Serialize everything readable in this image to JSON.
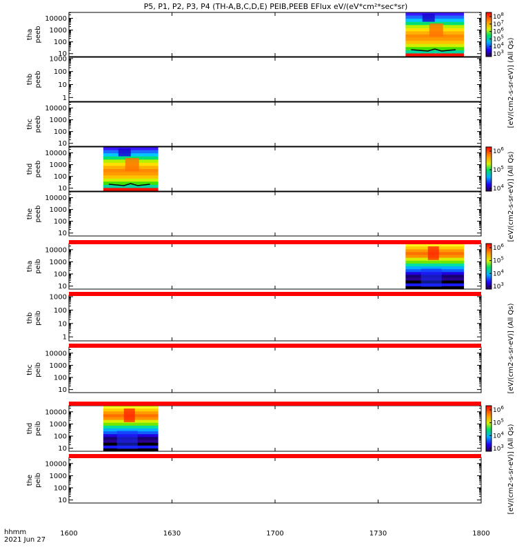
{
  "title": "P5, P1, P2, P3, P4 (TH-A,B,C,D,E) PEIB,PEEB EFlux eV/(eV*cm²*sec*sr)",
  "time_axis": {
    "label_line1": "hhmm",
    "label_line2": "2021 Jun 27",
    "ticks": [
      "1600",
      "1630",
      "1700",
      "1730",
      "1800"
    ],
    "range_minutes": [
      0,
      120
    ]
  },
  "chart_data": {
    "type": "heatmap",
    "x_range_minutes_after_1600": [
      0,
      120
    ],
    "panels": [
      {
        "label1": "tha",
        "label2": "peeb",
        "yticks": [
          "10000",
          "1000",
          "100",
          "10"
        ],
        "ymin_log": 0.75,
        "ymax_log": 4.5,
        "block": {
          "start_min": 98,
          "end_min": 115,
          "style": "electron"
        }
      },
      {
        "label1": "thb",
        "label2": "peeb",
        "yticks": [
          "1000",
          "100",
          "10",
          "1"
        ],
        "ymin_log": -0.3,
        "ymax_log": 3.1,
        "block": null
      },
      {
        "label1": "thc",
        "label2": "peeb",
        "yticks": [
          "10000",
          "1000",
          "100",
          "10"
        ],
        "ymin_log": 0.75,
        "ymax_log": 4.5,
        "block": null
      },
      {
        "label1": "thd",
        "label2": "peeb",
        "yticks": [
          "10000",
          "1000",
          "100",
          "10"
        ],
        "ymin_log": 0.75,
        "ymax_log": 4.5,
        "block": {
          "start_min": 10,
          "end_min": 26,
          "style": "electron"
        }
      },
      {
        "label1": "the",
        "label2": "peeb",
        "yticks": [
          "10000",
          "1000",
          "100",
          "10"
        ],
        "ymin_log": 0.75,
        "ymax_log": 4.5,
        "block": null
      },
      {
        "label1": "tha",
        "label2": "peib",
        "yticks": [
          "10000",
          "1000",
          "100",
          "10"
        ],
        "ymin_log": 0.75,
        "ymax_log": 4.5,
        "block": {
          "start_min": 98,
          "end_min": 115,
          "style": "ion"
        }
      },
      {
        "label1": "thb",
        "label2": "peib",
        "yticks": [
          "1000",
          "100",
          "10",
          "1"
        ],
        "ymin_log": -0.3,
        "ymax_log": 3.1,
        "block": null
      },
      {
        "label1": "thc",
        "label2": "peib",
        "yticks": [
          "10000",
          "1000",
          "100",
          "10"
        ],
        "ymin_log": 0.75,
        "ymax_log": 4.5,
        "block": null
      },
      {
        "label1": "thd",
        "label2": "peib",
        "yticks": [
          "10000",
          "1000",
          "100",
          "10"
        ],
        "ymin_log": 0.75,
        "ymax_log": 4.5,
        "block": {
          "start_min": 10,
          "end_min": 26,
          "style": "ion"
        }
      },
      {
        "label1": "the",
        "label2": "peib",
        "yticks": [
          "10000",
          "1000",
          "100",
          "10"
        ],
        "ymin_log": 0.75,
        "ymax_log": 4.5,
        "block": null
      }
    ],
    "colorbars": [
      {
        "ticks": [
          [
            "10",
            "8"
          ],
          [
            "10",
            "7"
          ],
          [
            "10",
            "6"
          ],
          [
            "10",
            "5"
          ],
          [
            "10",
            "4"
          ],
          [
            "10",
            "3"
          ]
        ],
        "label": "[eV/(cm2-s-sr-eV)] (All Qs)"
      },
      {
        "ticks": [
          [
            "10",
            "6"
          ],
          [
            "10",
            "5"
          ],
          [
            "10",
            "4"
          ]
        ],
        "label": "[eV/(cm2-s-sr-eV)] (All Qs)"
      },
      {
        "ticks": [
          [
            "10",
            "6"
          ],
          [
            "10",
            "5"
          ],
          [
            "10",
            "4"
          ],
          [
            "10",
            "3"
          ]
        ],
        "label": "[eV/(cm2-s-sr-eV)] (All Qs)"
      },
      {
        "ticks": [
          [
            "10",
            "6"
          ],
          [
            "10",
            "5"
          ],
          [
            "10",
            "4"
          ],
          [
            "10",
            "3"
          ]
        ],
        "label": "[eV/(cm2-s-sr-eV)] (All Qs)"
      }
    ],
    "red_bars_after_panels": [
      4,
      6,
      7,
      8
    ]
  }
}
